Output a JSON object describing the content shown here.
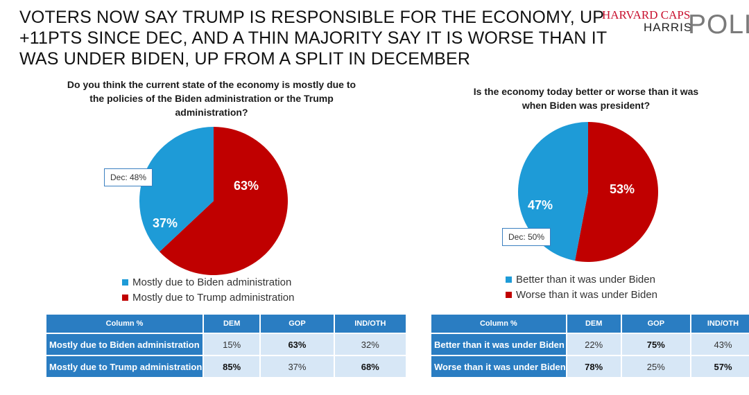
{
  "headline": {
    "line1": "VOTERS NOW SAY TRUMP IS RESPONSIBLE FOR THE ECONOMY, UP",
    "line2": "+11PTS SINCE DEC, AND A THIN MAJORITY SAY IT IS WORSE THAN IT",
    "line3": "WAS UNDER BIDEN, UP FROM A SPLIT IN DECEMBER"
  },
  "logo": {
    "line1": "HARVARD CAPS",
    "line2": "HARRIS",
    "line3": "POLL"
  },
  "colors": {
    "blue": "#1e9bd7",
    "red": "#c00000",
    "header_blue": "#2a7dc2",
    "cell_blue": "#d7e7f6"
  },
  "chart_data": [
    {
      "type": "pie",
      "title": "Do you think the current state of the economy is mostly due to the policies of the Biden administration or the Trump administration?",
      "title_lines": [
        "Do you think the current state of the economy is mostly due to",
        "the policies of the Biden administration or the Trump",
        "administration?"
      ],
      "labels": [
        "Mostly due to Trump administration",
        "Mostly due to Biden administration"
      ],
      "values": [
        63,
        37
      ],
      "value_labels": [
        "63%",
        "37%"
      ],
      "callout": "Dec: 48%",
      "legend": [
        "Mostly due to Biden administration",
        "Mostly due to Trump administration"
      ]
    },
    {
      "type": "pie",
      "title": "Is the economy today better or worse than it was when Biden was president?",
      "title_lines": [
        "Is the economy today better or worse than it was",
        "when Biden was president?"
      ],
      "labels": [
        "Worse than it was under Biden",
        "Better than it was under Biden"
      ],
      "values": [
        53,
        47
      ],
      "value_labels": [
        "53%",
        "47%"
      ],
      "callout": "Dec: 50%",
      "legend": [
        "Better than it was under Biden",
        "Worse than it was under Biden"
      ]
    }
  ],
  "table1": {
    "headers": [
      "Column %",
      "DEM",
      "GOP",
      "IND/OTH"
    ],
    "rows": [
      {
        "label": "Mostly due to Biden administration",
        "cells": [
          "15%",
          "63%",
          "32%"
        ]
      },
      {
        "label": "Mostly due to Trump administration",
        "cells": [
          "85%",
          "37%",
          "68%"
        ]
      }
    ]
  },
  "table2": {
    "headers": [
      "Column %",
      "DEM",
      "GOP",
      "IND/OTH"
    ],
    "rows": [
      {
        "label": "Better than it was under Biden",
        "cells": [
          "22%",
          "75%",
          "43%"
        ]
      },
      {
        "label": "Worse than it was under Biden",
        "cells": [
          "78%",
          "25%",
          "57%"
        ]
      }
    ]
  }
}
